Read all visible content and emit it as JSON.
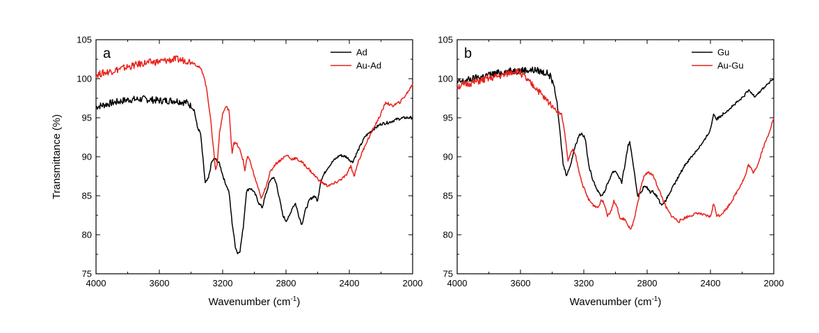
{
  "chart_data": [
    {
      "type": "line",
      "panel_label": "a",
      "title": "",
      "xlabel": "Wavenumber (cm",
      "xlabel_sup": "-1",
      "xlabel_close": ")",
      "ylabel": "Transmittance (%)",
      "xlim": [
        4000,
        2000
      ],
      "ylim": [
        75,
        105
      ],
      "x_reversed": true,
      "grid": false,
      "legend_position": "top-right",
      "xticks": [
        "4000",
        "3600",
        "3200",
        "2800",
        "2400",
        "2000"
      ],
      "yticks": [
        "75",
        "80",
        "85",
        "90",
        "95",
        "100",
        "105"
      ],
      "series": [
        {
          "name": "Ad",
          "color": "#000000",
          "points": [
            [
              4000,
              96.4
            ],
            [
              3900,
              96.9
            ],
            [
              3800,
              97.3
            ],
            [
              3700,
              97.4
            ],
            [
              3600,
              97.2
            ],
            [
              3500,
              97.2
            ],
            [
              3420,
              96.9
            ],
            [
              3380,
              96.0
            ],
            [
              3360,
              93.8
            ],
            [
              3340,
              93.0
            ],
            [
              3310,
              86.6
            ],
            [
              3290,
              87.2
            ],
            [
              3270,
              89.3
            ],
            [
              3250,
              89.8
            ],
            [
              3220,
              89.1
            ],
            [
              3190,
              87.0
            ],
            [
              3160,
              85.5
            ],
            [
              3140,
              81.5
            ],
            [
              3120,
              78.5
            ],
            [
              3105,
              77.6
            ],
            [
              3090,
              78.0
            ],
            [
              3070,
              81.0
            ],
            [
              3050,
              85.5
            ],
            [
              3030,
              86.0
            ],
            [
              3010,
              85.7
            ],
            [
              2990,
              85.0
            ],
            [
              2970,
              84.0
            ],
            [
              2950,
              83.5
            ],
            [
              2930,
              85.0
            ],
            [
              2900,
              87.0
            ],
            [
              2880,
              87.4
            ],
            [
              2860,
              86.5
            ],
            [
              2840,
              84.5
            ],
            [
              2820,
              82.5
            ],
            [
              2800,
              81.8
            ],
            [
              2780,
              82.3
            ],
            [
              2760,
              83.5
            ],
            [
              2740,
              84.0
            ],
            [
              2720,
              82.5
            ],
            [
              2700,
              81.3
            ],
            [
              2680,
              83.0
            ],
            [
              2650,
              84.5
            ],
            [
              2620,
              85.0
            ],
            [
              2600,
              84.3
            ],
            [
              2580,
              87.0
            ],
            [
              2540,
              88.5
            ],
            [
              2500,
              89.5
            ],
            [
              2460,
              90.2
            ],
            [
              2420,
              90.0
            ],
            [
              2380,
              89.3
            ],
            [
              2340,
              91.0
            ],
            [
              2300,
              92.6
            ],
            [
              2250,
              93.5
            ],
            [
              2200,
              94.2
            ],
            [
              2150,
              94.4
            ],
            [
              2100,
              94.8
            ],
            [
              2050,
              95.0
            ],
            [
              2000,
              95.0
            ]
          ]
        },
        {
          "name": "Au-Ad",
          "color": "#e8221c",
          "points": [
            [
              4000,
              100.5
            ],
            [
              3900,
              101.0
            ],
            [
              3800,
              101.5
            ],
            [
              3700,
              102.0
            ],
            [
              3600,
              102.2
            ],
            [
              3500,
              102.5
            ],
            [
              3420,
              102.3
            ],
            [
              3380,
              102.0
            ],
            [
              3340,
              101.3
            ],
            [
              3320,
              100.5
            ],
            [
              3300,
              98.5
            ],
            [
              3280,
              95.5
            ],
            [
              3260,
              91.5
            ],
            [
              3245,
              88.3
            ],
            [
              3235,
              89.0
            ],
            [
              3220,
              93.0
            ],
            [
              3200,
              95.5
            ],
            [
              3180,
              96.4
            ],
            [
              3160,
              96.0
            ],
            [
              3150,
              93.0
            ],
            [
              3140,
              90.5
            ],
            [
              3130,
              91.8
            ],
            [
              3110,
              91.6
            ],
            [
              3090,
              90.8
            ],
            [
              3070,
              89.5
            ],
            [
              3060,
              88.2
            ],
            [
              3050,
              89.5
            ],
            [
              3040,
              90.0
            ],
            [
              3020,
              89.0
            ],
            [
              3000,
              87.5
            ],
            [
              2980,
              86.3
            ],
            [
              2960,
              84.8
            ],
            [
              2950,
              84.8
            ],
            [
              2930,
              86.0
            ],
            [
              2900,
              88.0
            ],
            [
              2870,
              89.0
            ],
            [
              2840,
              89.5
            ],
            [
              2810,
              90.0
            ],
            [
              2790,
              90.2
            ],
            [
              2770,
              89.7
            ],
            [
              2740,
              89.8
            ],
            [
              2700,
              89.3
            ],
            [
              2660,
              88.5
            ],
            [
              2620,
              87.6
            ],
            [
              2580,
              86.8
            ],
            [
              2540,
              86.3
            ],
            [
              2500,
              86.5
            ],
            [
              2460,
              87.0
            ],
            [
              2420,
              87.6
            ],
            [
              2390,
              88.8
            ],
            [
              2370,
              87.5
            ],
            [
              2350,
              89.0
            ],
            [
              2300,
              91.5
            ],
            [
              2250,
              93.5
            ],
            [
              2200,
              95.5
            ],
            [
              2170,
              97.0
            ],
            [
              2130,
              96.5
            ],
            [
              2080,
              97.0
            ],
            [
              2040,
              98.0
            ],
            [
              2000,
              99.3
            ]
          ]
        }
      ]
    },
    {
      "type": "line",
      "panel_label": "b",
      "title": "",
      "xlabel": "Wavenumber (cm",
      "xlabel_sup": "-1",
      "xlabel_close": ")",
      "ylabel": "",
      "xlim": [
        4000,
        2000
      ],
      "ylim": [
        75,
        105
      ],
      "x_reversed": true,
      "grid": false,
      "legend_position": "top-right",
      "xticks": [
        "4000",
        "3600",
        "3200",
        "2800",
        "2400",
        "2000"
      ],
      "yticks": [
        "75",
        "80",
        "85",
        "90",
        "95",
        "100",
        "105"
      ],
      "series": [
        {
          "name": "Gu",
          "color": "#000000",
          "points": [
            [
              4000,
              99.5
            ],
            [
              3900,
              100.0
            ],
            [
              3800,
              100.5
            ],
            [
              3700,
              100.9
            ],
            [
              3600,
              101.1
            ],
            [
              3500,
              101.1
            ],
            [
              3420,
              100.6
            ],
            [
              3390,
              99.3
            ],
            [
              3370,
              97.0
            ],
            [
              3350,
              93.0
            ],
            [
              3330,
              89.0
            ],
            [
              3310,
              87.7
            ],
            [
              3290,
              88.5
            ],
            [
              3260,
              91.0
            ],
            [
              3230,
              92.8
            ],
            [
              3210,
              93.0
            ],
            [
              3190,
              92.2
            ],
            [
              3170,
              89.0
            ],
            [
              3150,
              87.5
            ],
            [
              3130,
              86.5
            ],
            [
              3110,
              85.5
            ],
            [
              3090,
              85.0
            ],
            [
              3070,
              85.5
            ],
            [
              3050,
              86.5
            ],
            [
              3020,
              88.0
            ],
            [
              3000,
              88.2
            ],
            [
              2980,
              87.5
            ],
            [
              2960,
              86.7
            ],
            [
              2940,
              89.0
            ],
            [
              2920,
              91.5
            ],
            [
              2910,
              91.8
            ],
            [
              2900,
              90.5
            ],
            [
              2880,
              88.0
            ],
            [
              2860,
              85.0
            ],
            [
              2840,
              85.4
            ],
            [
              2820,
              86.2
            ],
            [
              2800,
              86.0
            ],
            [
              2780,
              85.5
            ],
            [
              2760,
              85.5
            ],
            [
              2740,
              85.0
            ],
            [
              2720,
              84.2
            ],
            [
              2700,
              83.8
            ],
            [
              2680,
              84.5
            ],
            [
              2640,
              86.0
            ],
            [
              2600,
              87.5
            ],
            [
              2560,
              89.0
            ],
            [
              2520,
              90.0
            ],
            [
              2480,
              91.0
            ],
            [
              2440,
              92.0
            ],
            [
              2400,
              93.5
            ],
            [
              2380,
              95.5
            ],
            [
              2360,
              94.8
            ],
            [
              2320,
              95.5
            ],
            [
              2260,
              96.5
            ],
            [
              2200,
              97.5
            ],
            [
              2160,
              98.5
            ],
            [
              2120,
              97.8
            ],
            [
              2080,
              98.5
            ],
            [
              2040,
              99.3
            ],
            [
              2000,
              100.0
            ]
          ]
        },
        {
          "name": "Au-Gu",
          "color": "#e8221c",
          "points": [
            [
              4000,
              99.0
            ],
            [
              3900,
              99.5
            ],
            [
              3800,
              100.0
            ],
            [
              3700,
              100.5
            ],
            [
              3640,
              101.0
            ],
            [
              3600,
              100.8
            ],
            [
              3550,
              99.6
            ],
            [
              3500,
              98.8
            ],
            [
              3450,
              97.5
            ],
            [
              3400,
              96.6
            ],
            [
              3370,
              95.8
            ],
            [
              3340,
              95.4
            ],
            [
              3320,
              93.0
            ],
            [
              3300,
              89.5
            ],
            [
              3290,
              90.0
            ],
            [
              3270,
              91.0
            ],
            [
              3250,
              90.0
            ],
            [
              3230,
              88.0
            ],
            [
              3200,
              86.0
            ],
            [
              3170,
              84.5
            ],
            [
              3140,
              83.8
            ],
            [
              3110,
              83.5
            ],
            [
              3090,
              84.5
            ],
            [
              3070,
              84.0
            ],
            [
              3050,
              82.5
            ],
            [
              3030,
              83.0
            ],
            [
              3010,
              84.3
            ],
            [
              2990,
              83.5
            ],
            [
              2970,
              82.0
            ],
            [
              2940,
              82.0
            ],
            [
              2920,
              81.0
            ],
            [
              2900,
              80.8
            ],
            [
              2880,
              82.0
            ],
            [
              2860,
              84.0
            ],
            [
              2840,
              86.0
            ],
            [
              2820,
              87.5
            ],
            [
              2800,
              88.0
            ],
            [
              2780,
              87.9
            ],
            [
              2760,
              87.5
            ],
            [
              2740,
              86.5
            ],
            [
              2710,
              85.0
            ],
            [
              2680,
              83.5
            ],
            [
              2650,
              82.5
            ],
            [
              2620,
              82.0
            ],
            [
              2600,
              81.7
            ],
            [
              2560,
              82.2
            ],
            [
              2520,
              82.5
            ],
            [
              2480,
              82.8
            ],
            [
              2440,
              82.5
            ],
            [
              2400,
              82.3
            ],
            [
              2380,
              84.0
            ],
            [
              2360,
              82.5
            ],
            [
              2340,
              82.5
            ],
            [
              2300,
              83.3
            ],
            [
              2260,
              84.5
            ],
            [
              2220,
              86.0
            ],
            [
              2180,
              87.5
            ],
            [
              2160,
              89.0
            ],
            [
              2130,
              88.0
            ],
            [
              2100,
              89.0
            ],
            [
              2070,
              91.0
            ],
            [
              2040,
              92.5
            ],
            [
              2000,
              95.0
            ]
          ]
        }
      ]
    }
  ]
}
